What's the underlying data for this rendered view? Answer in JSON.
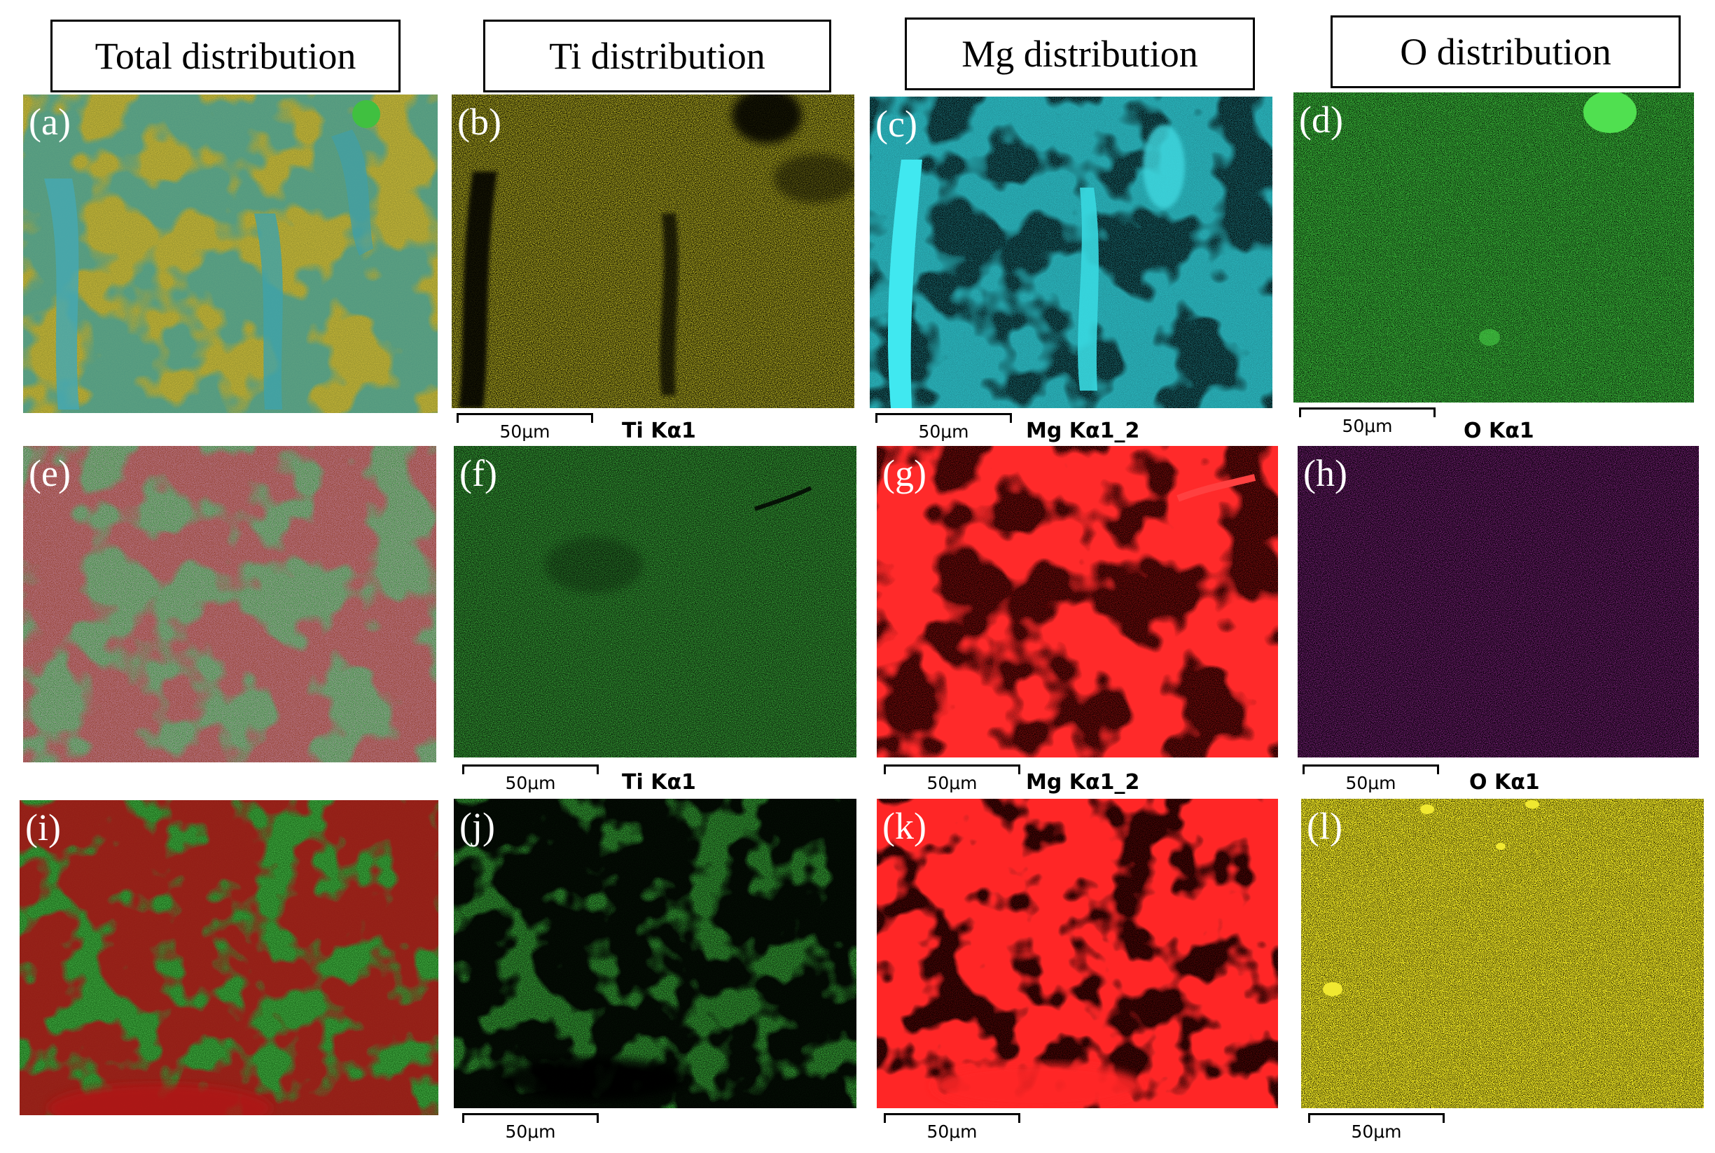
{
  "headers": {
    "total": "Total distribution",
    "ti": "Ti distribution",
    "mg": "Mg distribution",
    "o": "O distribution"
  },
  "panels": {
    "a": "(a)",
    "b": "(b)",
    "c": "(c)",
    "d": "(d)",
    "e": "(e)",
    "f": "(f)",
    "g": "(g)",
    "h": "(h)",
    "i": "(i)",
    "j": "(j)",
    "k": "(k)",
    "l": "(l)"
  },
  "scale_label": "50μm",
  "channels": {
    "ti": "Ti Kα1",
    "mg": "Mg Kα1_2",
    "o": "O Kα1"
  },
  "colors": {
    "yellow_map": "#d8d21c",
    "cyan_map": "#30e0e8",
    "green_map": "#2fb02f",
    "red_map": "#ff2020",
    "magenta_map": "#b030b0",
    "o_yellow_map": "#e8e020"
  }
}
